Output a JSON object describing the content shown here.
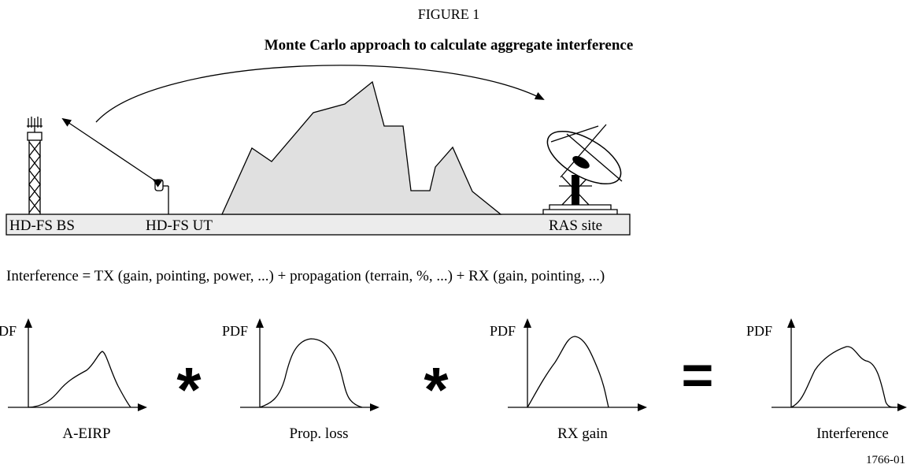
{
  "figure": {
    "label": "FIGURE 1",
    "title": "Monte Carlo approach to calculate aggregate interference"
  },
  "scene": {
    "labels": [
      "HD-FS BS",
      "HD-FS UT",
      "RAS site"
    ]
  },
  "equation": "Interference = TX (gain, pointing, power, ...) + propagation (terrain, %, ...) + RX (gain, pointing, ...)",
  "plots": [
    {
      "y_label": "PDF",
      "x_label": "A-EIRP"
    },
    {
      "y_label": "PDF",
      "x_label": "Prop. loss"
    },
    {
      "y_label": "PDF",
      "x_label": "RX gain"
    },
    {
      "y_label": "PDF",
      "x_label": "Interference"
    }
  ],
  "operators": [
    "*",
    "*",
    "="
  ],
  "figure_id": "1766-01"
}
